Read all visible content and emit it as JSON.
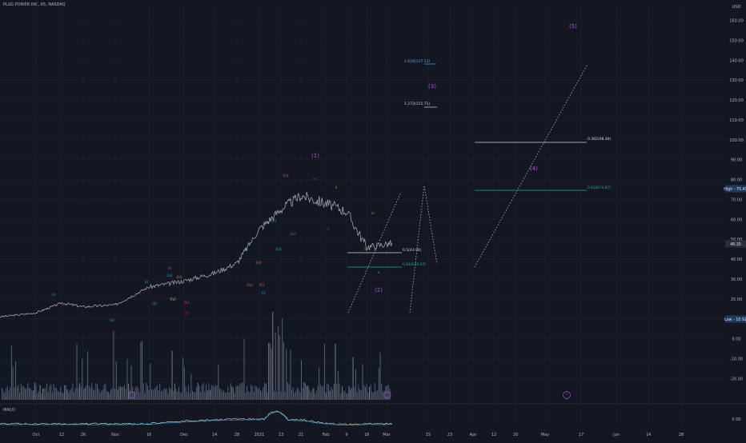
{
  "header": {
    "symbol_title": "PLUG POWER INC, 65, NASDAQ",
    "currency": "USD"
  },
  "colors": {
    "background": "#131722",
    "grid": "#1e2230",
    "axis_text": "#b2b5be",
    "price_line": "#b2b5be",
    "volume": "#8a9bb3",
    "volume_bright": "#c7d0dd",
    "wave_cyan": "#26a8e0",
    "wave_purple": "#b44fd2",
    "wave_orange": "#d97a45",
    "wave_red": "#c2185b",
    "fib_blue": "#4aa3df",
    "fib_teal": "#26a69a",
    "fib_white": "#d1d4dc",
    "high_badge": "#1e3a5f",
    "low_badge": "#1e3a5f",
    "last_price_badge": "#2a2e39",
    "macd_line": "#e0e0e0",
    "macd_signal": "#26a8e0"
  },
  "price_axis": {
    "ticks": [
      "160.00",
      "150.00",
      "140.00",
      "130.00",
      "120.00",
      "110.00",
      "100.00",
      "90.00",
      "80.00",
      "70.00",
      "60.00",
      "50.00",
      "40.00",
      "30.00",
      "20.00",
      "10.00",
      "0.00",
      "-10.00",
      "-20.00"
    ]
  },
  "badges": {
    "high": "High - 75.49",
    "low": "Low - 10.92",
    "last": "48.30"
  },
  "x_axis": {
    "labels": [
      "Oct",
      "12",
      "26",
      "Nov",
      "16",
      "Dec",
      "14",
      "28",
      "2021",
      "13",
      "21",
      "Feb",
      "9",
      "18",
      "Mar",
      "15",
      "23",
      "Apr",
      "12",
      "20",
      "May",
      "17",
      "Jun",
      "14",
      "28"
    ]
  },
  "macd": {
    "label": "MACD",
    "tick": "0.00"
  },
  "fib_levels": [
    {
      "label": "1.618(137.13)"
    },
    {
      "label": "1.272(115.71)"
    },
    {
      "label": "0.382(98.48)"
    },
    {
      "label": "0.618(74.87)"
    },
    {
      "label": "0.5(43.94)"
    },
    {
      "label": "0.618(36.65)"
    }
  ],
  "wave_labels": [
    {
      "text": "(i)",
      "color": "cyan"
    },
    {
      "text": "(ii)",
      "color": "cyan"
    },
    {
      "text": "(i)",
      "color": "cyan"
    },
    {
      "text": "(ii)",
      "color": "cyan"
    },
    {
      "text": "(iii)",
      "color": "cyan"
    },
    {
      "text": "(iv)",
      "color": "cyan"
    },
    {
      "text": "(iii)",
      "color": "orange"
    },
    {
      "text": "(iv)",
      "color": "orange"
    },
    {
      "text": "(i)",
      "color": "purple"
    },
    {
      "text": "(ii)",
      "color": "red"
    },
    {
      "text": "(v)",
      "color": "red"
    },
    {
      "text": "(C)",
      "color": "red"
    },
    {
      "text": "(i)",
      "color": "cyan"
    },
    {
      "text": "(iii)",
      "color": "orange"
    },
    {
      "text": "(iv)",
      "color": "orange"
    },
    {
      "text": "(C)",
      "color": "orange"
    },
    {
      "text": "(i)",
      "color": "cyan"
    },
    {
      "text": "(ii)",
      "color": "cyan"
    },
    {
      "text": "(iii)",
      "color": "cyan"
    },
    {
      "text": "(iii)",
      "color": "purple"
    },
    {
      "text": "(iv)",
      "color": "purple"
    },
    {
      "text": "(v)",
      "color": "red"
    },
    {
      "text": "(1)",
      "color": "purple"
    },
    {
      "text": "ii",
      "color": "orange"
    },
    {
      "text": "i",
      "color": "cyan"
    },
    {
      "text": "iv",
      "color": "orange"
    },
    {
      "text": "iii",
      "color": "orange"
    },
    {
      "text": "v",
      "color": "cyan"
    },
    {
      "text": "(2)",
      "color": "purple"
    },
    {
      "text": "(3)",
      "color": "purple"
    },
    {
      "text": "(4)",
      "color": "purple"
    },
    {
      "text": "(5)",
      "color": "purple"
    },
    {
      "text": "I",
      "color": "purple"
    }
  ],
  "chart_data": {
    "type": "line",
    "title": "PLUG POWER INC, 65, NASDAQ",
    "xlabel": "",
    "ylabel": "USD",
    "ylim": [
      -26,
      166
    ],
    "x": [
      "Sep 22",
      "Oct 1",
      "Oct 12",
      "Oct 26",
      "Nov 1",
      "Nov 16",
      "Dec 1",
      "Dec 14",
      "Dec 28",
      "Jan 4 2021",
      "Jan 13",
      "Jan 21",
      "Feb 1",
      "Feb 9",
      "Feb 18",
      "Feb 26"
    ],
    "series": [
      {
        "values": [
          11,
          13,
          18,
          16,
          17,
          26,
          29,
          33,
          38,
          55,
          65,
          72,
          68,
          64,
          46,
          48
        ]
      }
    ],
    "high": 75.49,
    "low": 10.92,
    "last": 48.3,
    "fib_targets": [
      137.13,
      115.71,
      98.48,
      74.87,
      43.94,
      36.65
    ],
    "grid": true,
    "legend": "none"
  }
}
